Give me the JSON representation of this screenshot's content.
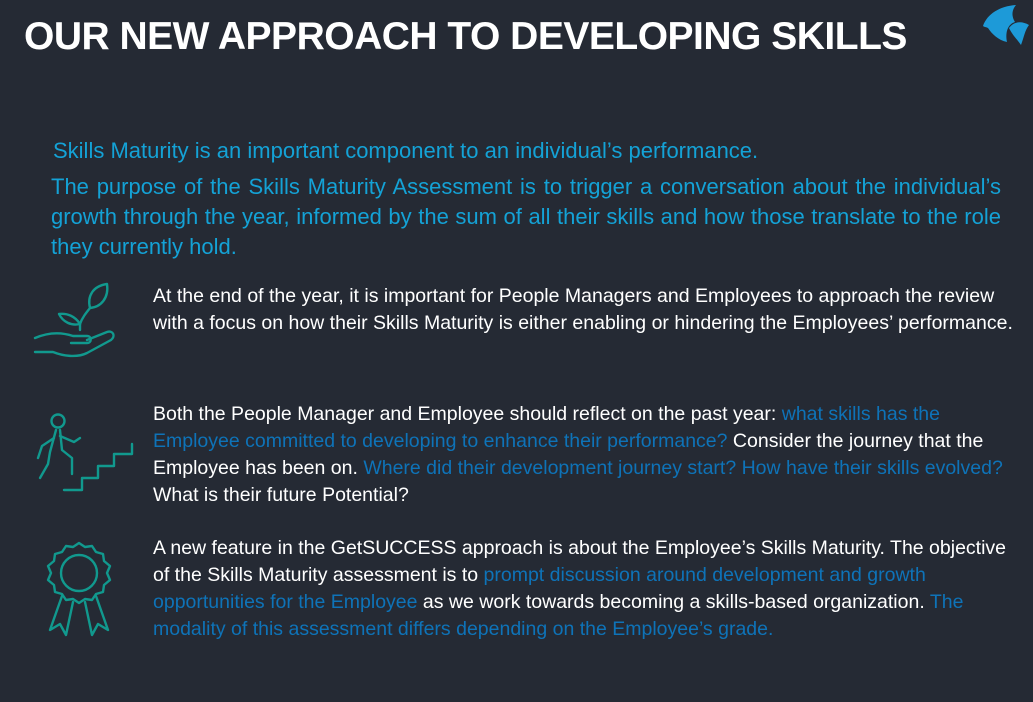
{
  "slide": {
    "title": "OUR NEW APPROACH TO DEVELOPING SKILLS",
    "lead": "Skills Maturity is an important component to an individual’s performance.",
    "purpose": "The purpose of the Skills Maturity Assessment is to trigger a conversation about the individual’s growth through the year, informed by the sum of all their skills and how those translate to the role they currently hold."
  },
  "sections": [
    {
      "icon": "plant-in-hand-icon",
      "text": "At the end of the year, it is important for People Managers and Employees to approach the review with a focus on how their Skills Maturity is either enabling or hindering the Employees’ performance."
    },
    {
      "icon": "climbing-stairs-icon",
      "parts": [
        "Both the People Manager and Employee should reflect on the past year: ",
        "what skills has the Employee committed to developing to enhance their performance?",
        " Consider the journey that the Employee has been on. ",
        "Where did their development journey start? How have their skills evolved?",
        " What is their future Potential?"
      ]
    },
    {
      "icon": "award-ribbon-icon",
      "parts": [
        "A new feature in the GetSUCCESS approach is about the Employee’s Skills Maturity. The objective of the Skills Maturity assessment is to ",
        "prompt discussion around development and growth opportunities for the Employee",
        " as we work towards becoming a skills-based organization. ",
        "The modality of this assessment differs depending on the Employee’s grade."
      ]
    }
  ],
  "colors": {
    "background": "#252a34",
    "title": "#ffffff",
    "accent": "#14a2d6",
    "highlight": "#0e73b8",
    "icon": "#11998e"
  }
}
